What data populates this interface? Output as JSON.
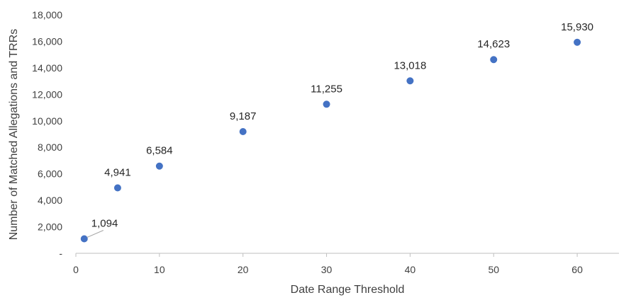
{
  "chart_data": {
    "type": "scatter",
    "xlabel": "Date Range Threshold",
    "ylabel": "Number of Matched Allegations and TRRs",
    "xlim": [
      0,
      65
    ],
    "ylim": [
      0,
      18000
    ],
    "x_ticks": [
      0,
      10,
      20,
      30,
      40,
      50,
      60
    ],
    "x_tick_labels": [
      "0",
      "10",
      "20",
      "30",
      "40",
      "50",
      "60"
    ],
    "y_ticks": [
      0,
      2000,
      4000,
      6000,
      8000,
      10000,
      12000,
      14000,
      16000,
      18000
    ],
    "y_tick_labels": [
      "-",
      "2,000",
      "4,000",
      "6,000",
      "8,000",
      "10,000",
      "12,000",
      "14,000",
      "16,000",
      "18,000"
    ],
    "grid": false,
    "legend": "none",
    "marker_color": "#4472C4",
    "series": [
      {
        "x": [
          1,
          5,
          10,
          20,
          30,
          40,
          50,
          60
        ],
        "y": [
          1094,
          4941,
          6584,
          9187,
          11255,
          13018,
          14623,
          15930
        ],
        "labels": [
          "1,094",
          "4,941",
          "6,584",
          "9,187",
          "11,255",
          "13,018",
          "14,623",
          "15,930"
        ]
      }
    ]
  }
}
